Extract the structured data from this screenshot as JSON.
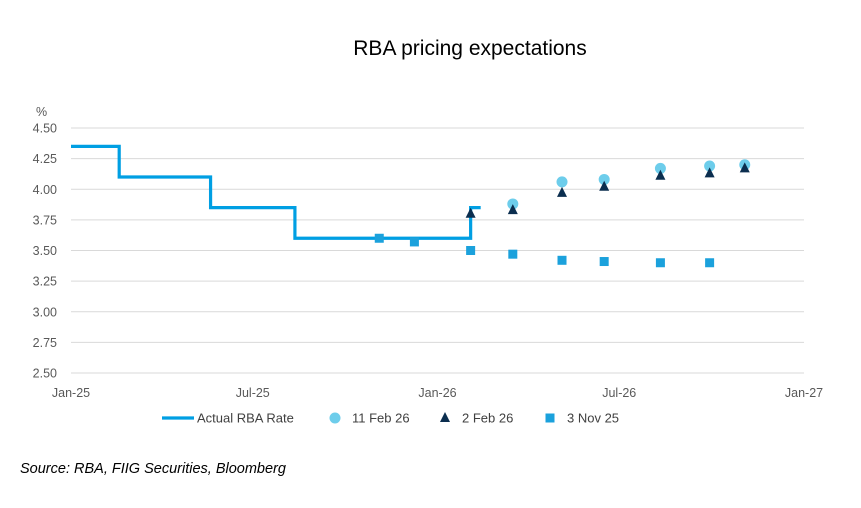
{
  "chart_data": {
    "type": "line",
    "title": "RBA pricing expectations",
    "ylabel": "%",
    "xlabel": "",
    "ylim": [
      2.5,
      4.5
    ],
    "xlim": [
      "2025-01-01",
      "2027-01-01"
    ],
    "yticks": [
      "4.50",
      "4.25",
      "4.00",
      "3.75",
      "3.50",
      "3.25",
      "3.00",
      "2.75",
      "2.50"
    ],
    "xticks": [
      {
        "label": "Jan-25",
        "date": "2025-01-01"
      },
      {
        "label": "Jul-25",
        "date": "2025-07-01"
      },
      {
        "label": "Jan-26",
        "date": "2026-01-01"
      },
      {
        "label": "Jul-26",
        "date": "2026-07-01"
      },
      {
        "label": "Jan-27",
        "date": "2027-01-01"
      }
    ],
    "grid": true,
    "legend_position": "bottom",
    "series": [
      {
        "name": "Actual RBA Rate",
        "kind": "step",
        "color": "#009FE3",
        "points": [
          [
            "2025-01-01",
            4.35
          ],
          [
            "2025-02-18",
            4.1
          ],
          [
            "2025-05-20",
            3.85
          ],
          [
            "2025-08-12",
            3.6
          ],
          [
            "2026-02-03",
            3.85
          ],
          [
            "2026-02-13",
            3.85
          ]
        ]
      },
      {
        "name": "11 Feb 26",
        "kind": "circle",
        "color": "#6DCDEB",
        "points": [
          [
            "2026-03-17",
            3.88
          ],
          [
            "2026-05-05",
            4.06
          ],
          [
            "2026-06-16",
            4.08
          ],
          [
            "2026-08-11",
            4.17
          ],
          [
            "2026-09-29",
            4.19
          ],
          [
            "2026-11-03",
            4.2
          ]
        ]
      },
      {
        "name": "2 Feb 26",
        "kind": "triangle",
        "color": "#0B2E4F",
        "points": [
          [
            "2026-02-03",
            3.8
          ],
          [
            "2026-03-17",
            3.83
          ],
          [
            "2026-05-05",
            3.97
          ],
          [
            "2026-06-16",
            4.02
          ],
          [
            "2026-08-11",
            4.11
          ],
          [
            "2026-09-29",
            4.13
          ],
          [
            "2026-11-03",
            4.17
          ]
        ]
      },
      {
        "name": "3 Nov 25",
        "kind": "square",
        "color": "#1BA1DC",
        "points": [
          [
            "2025-11-04",
            3.6
          ],
          [
            "2025-12-09",
            3.57
          ],
          [
            "2026-02-03",
            3.5
          ],
          [
            "2026-03-17",
            3.47
          ],
          [
            "2026-05-05",
            3.42
          ],
          [
            "2026-06-16",
            3.41
          ],
          [
            "2026-08-11",
            3.4
          ],
          [
            "2026-09-29",
            3.4
          ]
        ]
      }
    ]
  },
  "source": "Source:  RBA, FIIG Securities, Bloomberg"
}
